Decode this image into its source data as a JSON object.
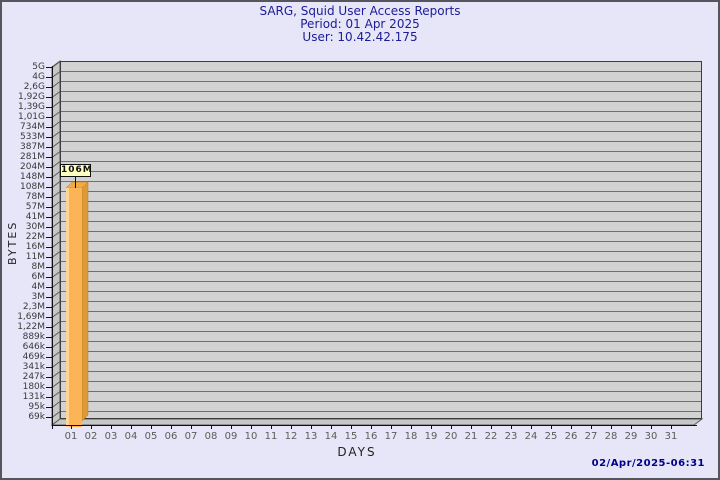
{
  "chart_data": {
    "type": "bar",
    "style": "3d-bar",
    "title": "SARG, Squid User Access Reports",
    "period": "Period: 01 Apr 2025",
    "user": "User: 10.42.42.175",
    "xlabel": "DAYS",
    "ylabel": "BYTES",
    "y_scale": "logarithmic",
    "grid": "horizontal",
    "legend": "none",
    "y_tick_labels": [
      "5G",
      "4G",
      "2,6G",
      "1,92G",
      "1,39G",
      "1,01G",
      "734M",
      "533M",
      "387M",
      "281M",
      "204M",
      "148M",
      "108M",
      "78M",
      "57M",
      "41M",
      "30M",
      "22M",
      "16M",
      "11M",
      "8M",
      "6M",
      "4M",
      "3M",
      "2,3M",
      "1,69M",
      "1,22M",
      "889k",
      "646k",
      "469k",
      "341k",
      "247k",
      "180k",
      "131k",
      "95k",
      "69k"
    ],
    "x_categories": [
      "01",
      "02",
      "03",
      "04",
      "05",
      "06",
      "07",
      "08",
      "09",
      "10",
      "11",
      "12",
      "13",
      "14",
      "15",
      "16",
      "17",
      "18",
      "19",
      "20",
      "21",
      "22",
      "23",
      "24",
      "25",
      "26",
      "27",
      "28",
      "29",
      "30",
      "31"
    ],
    "bars": [
      {
        "day": "01",
        "value": "106M"
      }
    ],
    "generated": "02/Apr/2025-06:31",
    "colors": {
      "background": "#e6e6f8",
      "border": "#55555f",
      "title_text": "#1c1c96",
      "plot_face": "#d2d2d2",
      "grid_line": "#6f6f6f",
      "wall": "#c7c7c7",
      "wall_line": "#5a5a5a",
      "axis": "#111111",
      "bar_face": "#fcb456",
      "bar_highlight": "#ffd494",
      "bar_side": "#dd9a36",
      "bar_top": "#f0aa48",
      "bar_label_bg": "#ffffc2",
      "timestamp_text": "#00008b"
    }
  }
}
